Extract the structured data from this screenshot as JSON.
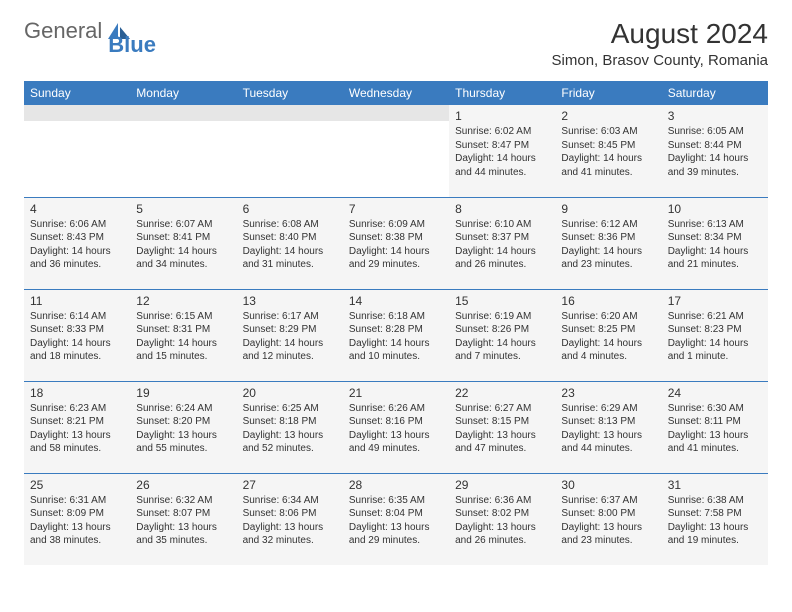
{
  "logo": {
    "text_gray": "General",
    "text_blue": "Blue"
  },
  "header": {
    "month_title": "August 2024",
    "location": "Simon, Brasov County, Romania"
  },
  "colors": {
    "header_bg": "#3a7bbf",
    "cell_bg": "#f5f5f5",
    "border": "#3a7bbf",
    "text": "#333333",
    "logo_gray": "#666666",
    "logo_blue": "#3a7bbf"
  },
  "days_of_week": [
    "Sunday",
    "Monday",
    "Tuesday",
    "Wednesday",
    "Thursday",
    "Friday",
    "Saturday"
  ],
  "weeks": [
    [
      null,
      null,
      null,
      null,
      {
        "num": "1",
        "sunrise": "Sunrise: 6:02 AM",
        "sunset": "Sunset: 8:47 PM",
        "daylight": "Daylight: 14 hours and 44 minutes."
      },
      {
        "num": "2",
        "sunrise": "Sunrise: 6:03 AM",
        "sunset": "Sunset: 8:45 PM",
        "daylight": "Daylight: 14 hours and 41 minutes."
      },
      {
        "num": "3",
        "sunrise": "Sunrise: 6:05 AM",
        "sunset": "Sunset: 8:44 PM",
        "daylight": "Daylight: 14 hours and 39 minutes."
      }
    ],
    [
      {
        "num": "4",
        "sunrise": "Sunrise: 6:06 AM",
        "sunset": "Sunset: 8:43 PM",
        "daylight": "Daylight: 14 hours and 36 minutes."
      },
      {
        "num": "5",
        "sunrise": "Sunrise: 6:07 AM",
        "sunset": "Sunset: 8:41 PM",
        "daylight": "Daylight: 14 hours and 34 minutes."
      },
      {
        "num": "6",
        "sunrise": "Sunrise: 6:08 AM",
        "sunset": "Sunset: 8:40 PM",
        "daylight": "Daylight: 14 hours and 31 minutes."
      },
      {
        "num": "7",
        "sunrise": "Sunrise: 6:09 AM",
        "sunset": "Sunset: 8:38 PM",
        "daylight": "Daylight: 14 hours and 29 minutes."
      },
      {
        "num": "8",
        "sunrise": "Sunrise: 6:10 AM",
        "sunset": "Sunset: 8:37 PM",
        "daylight": "Daylight: 14 hours and 26 minutes."
      },
      {
        "num": "9",
        "sunrise": "Sunrise: 6:12 AM",
        "sunset": "Sunset: 8:36 PM",
        "daylight": "Daylight: 14 hours and 23 minutes."
      },
      {
        "num": "10",
        "sunrise": "Sunrise: 6:13 AM",
        "sunset": "Sunset: 8:34 PM",
        "daylight": "Daylight: 14 hours and 21 minutes."
      }
    ],
    [
      {
        "num": "11",
        "sunrise": "Sunrise: 6:14 AM",
        "sunset": "Sunset: 8:33 PM",
        "daylight": "Daylight: 14 hours and 18 minutes."
      },
      {
        "num": "12",
        "sunrise": "Sunrise: 6:15 AM",
        "sunset": "Sunset: 8:31 PM",
        "daylight": "Daylight: 14 hours and 15 minutes."
      },
      {
        "num": "13",
        "sunrise": "Sunrise: 6:17 AM",
        "sunset": "Sunset: 8:29 PM",
        "daylight": "Daylight: 14 hours and 12 minutes."
      },
      {
        "num": "14",
        "sunrise": "Sunrise: 6:18 AM",
        "sunset": "Sunset: 8:28 PM",
        "daylight": "Daylight: 14 hours and 10 minutes."
      },
      {
        "num": "15",
        "sunrise": "Sunrise: 6:19 AM",
        "sunset": "Sunset: 8:26 PM",
        "daylight": "Daylight: 14 hours and 7 minutes."
      },
      {
        "num": "16",
        "sunrise": "Sunrise: 6:20 AM",
        "sunset": "Sunset: 8:25 PM",
        "daylight": "Daylight: 14 hours and 4 minutes."
      },
      {
        "num": "17",
        "sunrise": "Sunrise: 6:21 AM",
        "sunset": "Sunset: 8:23 PM",
        "daylight": "Daylight: 14 hours and 1 minute."
      }
    ],
    [
      {
        "num": "18",
        "sunrise": "Sunrise: 6:23 AM",
        "sunset": "Sunset: 8:21 PM",
        "daylight": "Daylight: 13 hours and 58 minutes."
      },
      {
        "num": "19",
        "sunrise": "Sunrise: 6:24 AM",
        "sunset": "Sunset: 8:20 PM",
        "daylight": "Daylight: 13 hours and 55 minutes."
      },
      {
        "num": "20",
        "sunrise": "Sunrise: 6:25 AM",
        "sunset": "Sunset: 8:18 PM",
        "daylight": "Daylight: 13 hours and 52 minutes."
      },
      {
        "num": "21",
        "sunrise": "Sunrise: 6:26 AM",
        "sunset": "Sunset: 8:16 PM",
        "daylight": "Daylight: 13 hours and 49 minutes."
      },
      {
        "num": "22",
        "sunrise": "Sunrise: 6:27 AM",
        "sunset": "Sunset: 8:15 PM",
        "daylight": "Daylight: 13 hours and 47 minutes."
      },
      {
        "num": "23",
        "sunrise": "Sunrise: 6:29 AM",
        "sunset": "Sunset: 8:13 PM",
        "daylight": "Daylight: 13 hours and 44 minutes."
      },
      {
        "num": "24",
        "sunrise": "Sunrise: 6:30 AM",
        "sunset": "Sunset: 8:11 PM",
        "daylight": "Daylight: 13 hours and 41 minutes."
      }
    ],
    [
      {
        "num": "25",
        "sunrise": "Sunrise: 6:31 AM",
        "sunset": "Sunset: 8:09 PM",
        "daylight": "Daylight: 13 hours and 38 minutes."
      },
      {
        "num": "26",
        "sunrise": "Sunrise: 6:32 AM",
        "sunset": "Sunset: 8:07 PM",
        "daylight": "Daylight: 13 hours and 35 minutes."
      },
      {
        "num": "27",
        "sunrise": "Sunrise: 6:34 AM",
        "sunset": "Sunset: 8:06 PM",
        "daylight": "Daylight: 13 hours and 32 minutes."
      },
      {
        "num": "28",
        "sunrise": "Sunrise: 6:35 AM",
        "sunset": "Sunset: 8:04 PM",
        "daylight": "Daylight: 13 hours and 29 minutes."
      },
      {
        "num": "29",
        "sunrise": "Sunrise: 6:36 AM",
        "sunset": "Sunset: 8:02 PM",
        "daylight": "Daylight: 13 hours and 26 minutes."
      },
      {
        "num": "30",
        "sunrise": "Sunrise: 6:37 AM",
        "sunset": "Sunset: 8:00 PM",
        "daylight": "Daylight: 13 hours and 23 minutes."
      },
      {
        "num": "31",
        "sunrise": "Sunrise: 6:38 AM",
        "sunset": "Sunset: 7:58 PM",
        "daylight": "Daylight: 13 hours and 19 minutes."
      }
    ]
  ]
}
